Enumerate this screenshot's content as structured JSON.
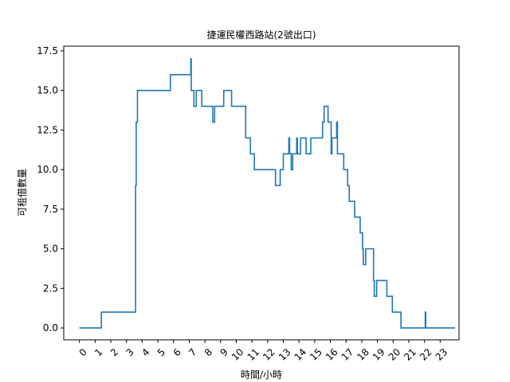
{
  "chart_data": {
    "type": "line",
    "title": "捷運民權西路站(2號出口)",
    "xlabel": "時間/小時",
    "ylabel": "可租借數量",
    "xlim": [
      -1,
      24.2
    ],
    "ylim": [
      -0.75,
      17.8
    ],
    "grid": false,
    "x_ticks": [
      0,
      1,
      2,
      3,
      4,
      5,
      6,
      7,
      8,
      9,
      10,
      11,
      12,
      13,
      14,
      15,
      16,
      17,
      18,
      19,
      20,
      21,
      22,
      23
    ],
    "x_tick_labels": [
      "0",
      "1",
      "2",
      "3",
      "4",
      "5",
      "6",
      "7",
      "8",
      "9",
      "10",
      "11",
      "12",
      "13",
      "14",
      "15",
      "16",
      "17",
      "18",
      "19",
      "20",
      "21",
      "22",
      "23"
    ],
    "y_ticks": [
      0,
      2.5,
      5,
      7.5,
      10,
      12.5,
      15,
      17.5
    ],
    "y_tick_labels": [
      "0.0",
      "2.5",
      "5.0",
      "7.5",
      "10.0",
      "12.5",
      "15.0",
      "17.5"
    ],
    "color": "#1f77b4",
    "series": [
      {
        "step": "post",
        "points": [
          [
            0,
            0
          ],
          [
            1.4,
            1
          ],
          [
            3.5,
            1
          ],
          [
            3.58,
            9
          ],
          [
            3.62,
            13
          ],
          [
            3.7,
            15
          ],
          [
            5.8,
            16
          ],
          [
            7.1,
            17
          ],
          [
            7.13,
            15
          ],
          [
            7.3,
            14
          ],
          [
            7.45,
            15
          ],
          [
            7.8,
            14
          ],
          [
            8.5,
            13
          ],
          [
            8.62,
            14
          ],
          [
            9.2,
            15
          ],
          [
            9.7,
            14
          ],
          [
            10.6,
            12
          ],
          [
            10.9,
            11
          ],
          [
            11.15,
            10
          ],
          [
            12.5,
            9
          ],
          [
            12.8,
            10
          ],
          [
            13.0,
            11
          ],
          [
            13.35,
            12
          ],
          [
            13.4,
            11
          ],
          [
            13.5,
            10
          ],
          [
            13.6,
            11
          ],
          [
            13.85,
            12
          ],
          [
            13.9,
            11
          ],
          [
            14.1,
            12
          ],
          [
            14.45,
            11
          ],
          [
            14.75,
            12
          ],
          [
            15.5,
            13
          ],
          [
            15.6,
            14
          ],
          [
            15.85,
            13
          ],
          [
            16.05,
            11
          ],
          [
            16.1,
            12
          ],
          [
            16.4,
            13
          ],
          [
            16.45,
            11
          ],
          [
            16.85,
            10
          ],
          [
            17.1,
            9
          ],
          [
            17.2,
            8
          ],
          [
            17.55,
            7
          ],
          [
            17.9,
            6
          ],
          [
            18.05,
            5
          ],
          [
            18.1,
            4
          ],
          [
            18.25,
            5
          ],
          [
            18.75,
            3
          ],
          [
            18.8,
            2
          ],
          [
            18.95,
            3
          ],
          [
            19.6,
            2
          ],
          [
            19.95,
            1
          ],
          [
            20.5,
            0
          ],
          [
            22.05,
            1
          ],
          [
            22.08,
            0
          ],
          [
            23.95,
            0
          ]
        ]
      }
    ]
  }
}
